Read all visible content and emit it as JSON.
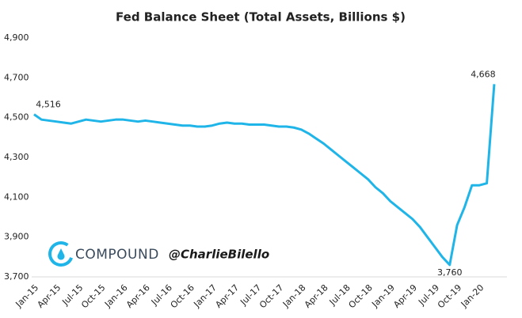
{
  "chart_data": {
    "type": "line",
    "title": "Fed Balance Sheet (Total Assets, Billions $)",
    "categories": [
      "Jan-15",
      null,
      null,
      "Apr-15",
      null,
      null,
      "Jul-15",
      null,
      null,
      "Oct-15",
      null,
      null,
      "Jan-16",
      null,
      null,
      "Apr-16",
      null,
      null,
      "Jul-16",
      null,
      null,
      "Oct-16",
      null,
      null,
      "Jan-17",
      null,
      null,
      "Apr-17",
      null,
      null,
      "Jul-17",
      null,
      null,
      "Oct-17",
      null,
      null,
      "Jan-18",
      null,
      null,
      "Apr-18",
      null,
      null,
      "Jul-18",
      null,
      null,
      "Oct-18",
      null,
      null,
      "Jan-19",
      null,
      null,
      "Apr-19",
      null,
      null,
      "Jul-19",
      null,
      null,
      "Oct-19",
      null,
      null,
      "Jan-20",
      null,
      null
    ],
    "values": [
      4516,
      4490,
      4485,
      4480,
      4475,
      4470,
      4480,
      4490,
      4485,
      4480,
      4485,
      4490,
      4490,
      4485,
      4480,
      4485,
      4480,
      4475,
      4470,
      4465,
      4460,
      4460,
      4455,
      4455,
      4460,
      4470,
      4475,
      4470,
      4470,
      4465,
      4465,
      4465,
      4460,
      4455,
      4455,
      4450,
      4440,
      4420,
      4395,
      4370,
      4340,
      4310,
      4280,
      4250,
      4220,
      4190,
      4150,
      4120,
      4080,
      4050,
      4020,
      3990,
      3950,
      3900,
      3850,
      3800,
      3760,
      3960,
      4050,
      4160,
      4160,
      4170,
      4668
    ],
    "value_labels": [
      "4,516",
      null,
      null,
      null,
      null,
      null,
      null,
      null,
      null,
      null,
      null,
      null,
      null,
      null,
      null,
      null,
      null,
      null,
      null,
      null,
      null,
      null,
      null,
      null,
      null,
      null,
      null,
      null,
      null,
      null,
      null,
      null,
      null,
      null,
      null,
      null,
      null,
      null,
      null,
      null,
      null,
      null,
      null,
      null,
      null,
      null,
      null,
      null,
      null,
      null,
      null,
      null,
      null,
      null,
      null,
      null,
      "3,760",
      null,
      null,
      null,
      null,
      null,
      "4,668"
    ],
    "color": "#1fb5e8",
    "ylim": [
      3700,
      4900
    ],
    "yticks": [
      {
        "value": 3700,
        "label": "3,700"
      },
      {
        "value": 3900,
        "label": "3,900"
      },
      {
        "value": 4100,
        "label": "4,100"
      },
      {
        "value": 4300,
        "label": "4,300"
      },
      {
        "value": 4500,
        "label": "4,500"
      },
      {
        "value": 4700,
        "label": "4,700"
      },
      {
        "value": 4900,
        "label": "4,900"
      }
    ],
    "grid": false
  },
  "watermark": {
    "brand": "COMPOUND",
    "handle": "@CharlieBilello"
  }
}
